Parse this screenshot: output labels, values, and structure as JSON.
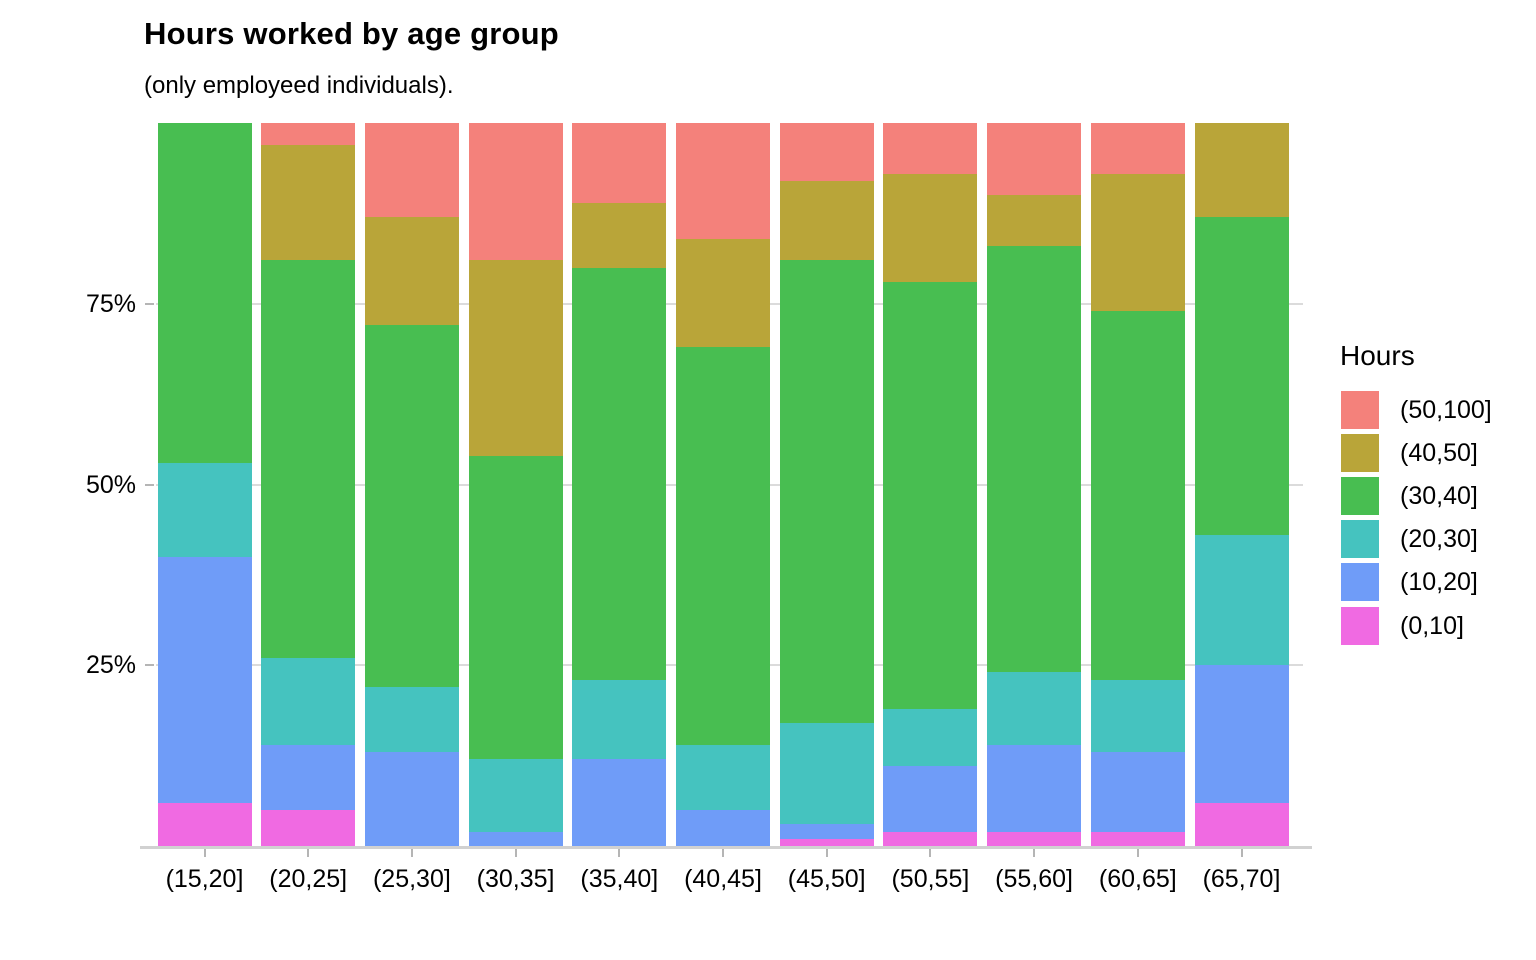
{
  "title": "Hours worked by age group",
  "subtitle": "(only employeed individuals).",
  "legend": {
    "title": "Hours",
    "position": "right"
  },
  "colors": {
    "salmon": "#F4817B",
    "gold": "#B9A539",
    "green": "#48BE51",
    "teal": "#45C3BF",
    "blue": "#6F9CF8",
    "magenta": "#F06AE2",
    "gridline": "#DBDBDB",
    "axis_line": "#D1D1D1",
    "text": "#000000"
  },
  "chart_data": {
    "type": "bar",
    "stacked": true,
    "normalized": "percent",
    "title": "Hours worked by age group",
    "subtitle": "(only employeed individuals).",
    "xlabel": "",
    "ylabel": "",
    "ylim": [
      0,
      100
    ],
    "grid": "horizontal-major",
    "legend_title": "Hours",
    "legend_position": "right",
    "yticks": [
      {
        "label": "25%",
        "value": 25
      },
      {
        "label": "50%",
        "value": 50
      },
      {
        "label": "75%",
        "value": 75
      }
    ],
    "categories": [
      "(15,20]",
      "(20,25]",
      "(25,30]",
      "(30,35]",
      "(35,40]",
      "(40,45]",
      "(45,50]",
      "(50,55]",
      "(55,60]",
      "(60,65]",
      "(65,70]"
    ],
    "series": [
      {
        "name": "(50,100]",
        "color": "#F4817B",
        "values": [
          0,
          3,
          13,
          19,
          11,
          16,
          8,
          7,
          10,
          7,
          0
        ]
      },
      {
        "name": "(40,50]",
        "color": "#B9A539",
        "values": [
          0,
          16,
          15,
          27,
          9,
          15,
          11,
          15,
          7,
          19,
          13
        ]
      },
      {
        "name": "(30,40]",
        "color": "#48BE51",
        "values": [
          47,
          55,
          50,
          42,
          57,
          55,
          64,
          59,
          59,
          51,
          44
        ]
      },
      {
        "name": "(20,30]",
        "color": "#45C3BF",
        "values": [
          13,
          12,
          9,
          10,
          11,
          9,
          14,
          8,
          10,
          10,
          18
        ]
      },
      {
        "name": "(10,20]",
        "color": "#6F9CF8",
        "values": [
          34,
          9,
          13,
          2,
          12,
          5,
          2,
          9,
          12,
          11,
          19
        ]
      },
      {
        "name": "(0,10]",
        "color": "#F06AE2",
        "values": [
          6,
          5,
          0,
          0,
          0,
          0,
          1,
          2,
          2,
          2,
          6
        ]
      }
    ]
  }
}
